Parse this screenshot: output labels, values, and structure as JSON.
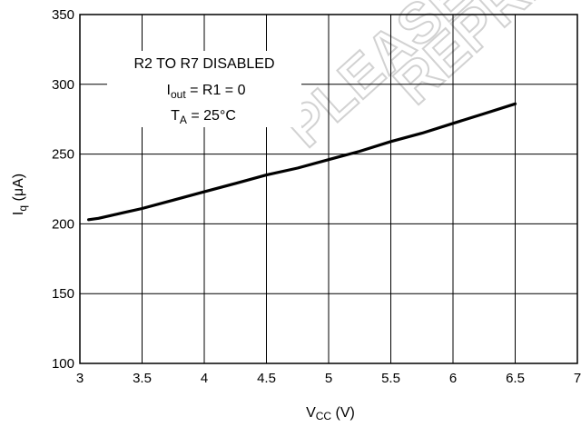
{
  "chart_data": {
    "type": "line",
    "xlabel": {
      "main": "V",
      "sub": "CC",
      "unit": " (V)"
    },
    "ylabel": {
      "main": "I",
      "sub": "q",
      "unit": "  (μA)"
    },
    "xlim": [
      3,
      7
    ],
    "ylim": [
      100,
      350
    ],
    "xticks": [
      "3",
      "3.5",
      "4",
      "4.5",
      "5",
      "5.5",
      "6",
      "6.5",
      "7"
    ],
    "yticks": [
      "100",
      "150",
      "200",
      "250",
      "300",
      "350"
    ],
    "grid": true,
    "annotations": {
      "line1": "R2 TO R7 DISABLED",
      "line2": {
        "main": "I",
        "sub": "out",
        "rest": " = R1 = 0"
      },
      "line3": {
        "main": "T",
        "sub": "A",
        "rest": " = 25°C"
      }
    },
    "watermark": [
      "PLEASE C",
      "REPRES"
    ],
    "series": [
      {
        "x": [
          3.07,
          3.15,
          3.25,
          3.35,
          3.5,
          3.75,
          4.0,
          4.25,
          4.5,
          4.75,
          5.0,
          5.25,
          5.5,
          5.75,
          6.0,
          6.25,
          6.5
        ],
        "y": [
          203,
          204,
          206,
          208,
          211,
          217,
          223,
          229,
          235,
          240,
          246,
          252,
          259,
          265,
          272,
          279,
          286
        ]
      }
    ]
  }
}
